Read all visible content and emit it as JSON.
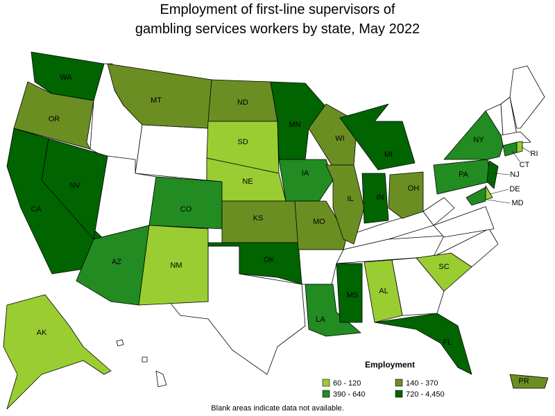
{
  "chart_data": {
    "type": "choropleth",
    "title": [
      "Employment of first-line supervisors of",
      "gambling services workers by state, May 2022"
    ],
    "legend_title": "Employment",
    "legend": [
      {
        "label": "60 - 120",
        "color": "#9acd32"
      },
      {
        "label": "140 - 370",
        "color": "#6b8e23"
      },
      {
        "label": "390 - 640",
        "color": "#228b22"
      },
      {
        "label": "720 - 4,450",
        "color": "#006400"
      }
    ],
    "states": [
      {
        "name": "WA",
        "range": 3
      },
      {
        "name": "OR",
        "range": 1
      },
      {
        "name": "CA",
        "range": 3
      },
      {
        "name": "NV",
        "range": 3
      },
      {
        "name": "MT",
        "range": 1
      },
      {
        "name": "CO",
        "range": 2
      },
      {
        "name": "AZ",
        "range": 2
      },
      {
        "name": "NM",
        "range": 0
      },
      {
        "name": "ND",
        "range": 1
      },
      {
        "name": "SD",
        "range": 0
      },
      {
        "name": "NE",
        "range": 0
      },
      {
        "name": "KS",
        "range": 1
      },
      {
        "name": "OK",
        "range": 3
      },
      {
        "name": "MN",
        "range": 3
      },
      {
        "name": "IA",
        "range": 2
      },
      {
        "name": "MO",
        "range": 1
      },
      {
        "name": "WI",
        "range": 1
      },
      {
        "name": "IL",
        "range": 1
      },
      {
        "name": "IN",
        "range": 3
      },
      {
        "name": "MI",
        "range": 3
      },
      {
        "name": "OH",
        "range": 1
      },
      {
        "name": "LA",
        "range": 2
      },
      {
        "name": "MS",
        "range": 3
      },
      {
        "name": "AL",
        "range": 0
      },
      {
        "name": "FL",
        "range": 3
      },
      {
        "name": "SC",
        "range": 0
      },
      {
        "name": "PA",
        "range": 2
      },
      {
        "name": "NY",
        "range": 2
      },
      {
        "name": "NJ",
        "range": 3
      },
      {
        "name": "DE",
        "range": 0
      },
      {
        "name": "MD",
        "range": 2
      },
      {
        "name": "CT",
        "range": 2
      },
      {
        "name": "RI",
        "range": 0
      },
      {
        "name": "AK",
        "range": 0
      },
      {
        "name": "PR",
        "range": 1
      }
    ],
    "footnote": "Blank areas indicate data not available."
  }
}
